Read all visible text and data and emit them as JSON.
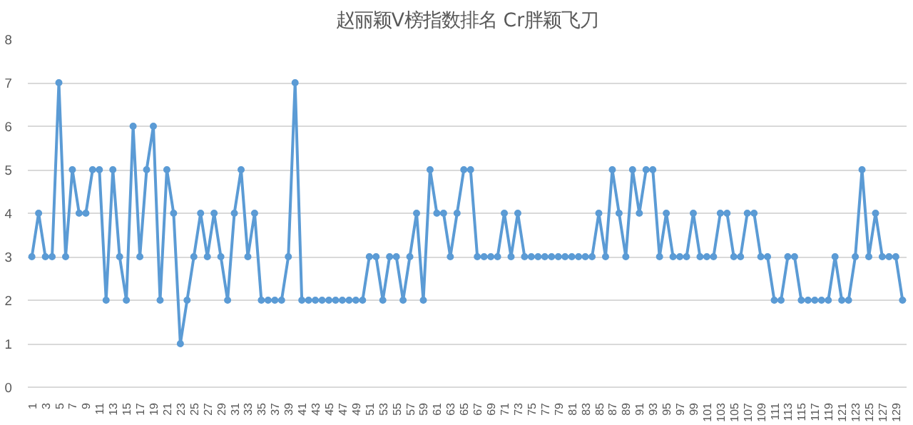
{
  "chart_data": {
    "type": "line",
    "title": "赵丽颖V榜指数排名 Cr胖颖飞刀",
    "categories": [
      "1",
      null,
      "3",
      null,
      "5",
      null,
      "7",
      null,
      "9",
      null,
      "11",
      null,
      "13",
      null,
      "15",
      null,
      "17",
      null,
      "19",
      null,
      "21",
      null,
      "23",
      null,
      "25",
      null,
      "27",
      null,
      "29",
      null,
      "31",
      null,
      "33",
      null,
      "35",
      null,
      "37",
      null,
      "39",
      null,
      "41",
      null,
      "43",
      null,
      "45",
      null,
      "47",
      null,
      "49",
      null,
      "51",
      null,
      "53",
      null,
      "55",
      null,
      "57",
      null,
      "59",
      null,
      "61",
      null,
      "63",
      null,
      "65",
      null,
      "67",
      null,
      "69",
      null,
      "71",
      null,
      "73",
      null,
      "75",
      null,
      "77",
      null,
      "79",
      null,
      "81",
      null,
      "83",
      null,
      "85",
      null,
      "87",
      null,
      "89",
      null,
      "91",
      null,
      "93",
      null,
      "95",
      null,
      "97",
      null,
      "99",
      null,
      "101",
      null,
      "103",
      null,
      "105",
      null,
      "107",
      null,
      "109",
      null,
      "111",
      null,
      "113",
      null,
      "115",
      null,
      "117",
      null,
      "119",
      null,
      "121",
      null,
      "123",
      null,
      "125",
      null,
      "127",
      null,
      "129",
      null
    ],
    "series": [
      {
        "color": "#5b9bd5",
        "values": [
          3,
          4,
          3,
          3,
          7,
          3,
          5,
          4,
          4,
          5,
          5,
          2,
          5,
          3,
          2,
          6,
          3,
          5,
          6,
          2,
          5,
          4,
          1,
          2,
          3,
          4,
          3,
          4,
          3,
          2,
          4,
          5,
          3,
          4,
          2,
          2,
          2,
          2,
          3,
          7,
          2,
          2,
          2,
          2,
          2,
          2,
          2,
          2,
          2,
          2,
          3,
          3,
          2,
          3,
          3,
          2,
          3,
          4,
          2,
          5,
          4,
          4,
          3,
          4,
          5,
          5,
          3,
          3,
          3,
          3,
          4,
          3,
          4,
          3,
          3,
          3,
          3,
          3,
          3,
          3,
          3,
          3,
          3,
          3,
          4,
          3,
          5,
          4,
          3,
          5,
          4,
          5,
          5,
          3,
          4,
          3,
          3,
          3,
          4,
          3,
          3,
          3,
          4,
          4,
          3,
          3,
          4,
          4,
          3,
          3,
          2,
          2,
          3,
          3,
          2,
          2,
          2,
          2,
          2,
          3,
          2,
          2,
          3,
          5,
          3,
          4,
          3,
          3,
          3,
          2
        ]
      }
    ],
    "ylim": [
      0,
      8
    ],
    "yticks": [
      0,
      1,
      2,
      3,
      4,
      5,
      6,
      7,
      8
    ],
    "grid": "y",
    "marker": "circle",
    "line_style": "solid"
  }
}
